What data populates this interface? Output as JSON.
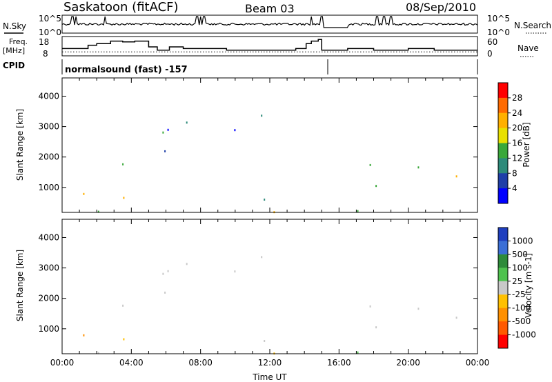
{
  "header": {
    "title": "Saskatoon (fitACF)",
    "beam": "Beam 03",
    "date": "08/Sep/2010"
  },
  "labels": {
    "nsky": "N.Sky",
    "nsearch": "N.Search",
    "freq_line1": "Freq.",
    "freq_line2": "[MHz]",
    "nave": "Nave",
    "cpid": "CPID",
    "cpid_value": "normalsound (fast) -157"
  },
  "chart_data": [
    {
      "type": "line",
      "name": "noise",
      "left_ticks": [
        "10^5",
        "10^0"
      ],
      "right_ticks": [
        "10^5",
        "10^0"
      ],
      "x_range_hours": [
        0,
        24
      ],
      "note_shape": "mostly flat near mid-level with spikes near 00:30-01:00, 02:30, 07:45-08:15, 14:30, 15:00, 18:00-19:00"
    },
    {
      "type": "line",
      "name": "frequency-nave",
      "left_ticks": [
        "18",
        "8"
      ],
      "right_ticks": [
        "60",
        "0"
      ],
      "ylim_left": [
        8,
        18
      ],
      "ylim_right": [
        0,
        60
      ],
      "freq_steps": [
        {
          "t": 0.0,
          "f": 12
        },
        {
          "t": 1.5,
          "f": 14
        },
        {
          "t": 2.0,
          "f": 15
        },
        {
          "t": 2.8,
          "f": 16.5
        },
        {
          "t": 3.5,
          "f": 16
        },
        {
          "t": 4.2,
          "f": 16.5
        },
        {
          "t": 5.0,
          "f": 13
        },
        {
          "t": 5.5,
          "f": 11
        },
        {
          "t": 6.2,
          "f": 13
        },
        {
          "t": 7.0,
          "f": 12
        },
        {
          "t": 9.5,
          "f": 11
        },
        {
          "t": 12.0,
          "f": 11
        },
        {
          "t": 13.5,
          "f": 12
        },
        {
          "t": 14.1,
          "f": 15
        },
        {
          "t": 14.4,
          "f": 16.5
        },
        {
          "t": 14.8,
          "f": 17.5
        },
        {
          "t": 15.0,
          "f": 11
        },
        {
          "t": 16.5,
          "f": 12
        },
        {
          "t": 18.0,
          "f": 11
        },
        {
          "t": 20.0,
          "f": 12
        },
        {
          "t": 21.5,
          "f": 11
        },
        {
          "t": 22.5,
          "f": 11
        },
        {
          "t": 24.0,
          "f": 11
        }
      ],
      "nave_dotted_value": 12
    },
    {
      "type": "heatmap",
      "name": "power",
      "ylabel": "Slant Range [km]",
      "yticks": [
        "4000",
        "3000",
        "2000",
        "1000"
      ],
      "ylim": [
        180,
        4600
      ],
      "x_range_hours": [
        0,
        24
      ],
      "colorbar_label": "Power [dB]",
      "colorbar_ticks": [
        "28",
        "24",
        "20",
        "16",
        "12",
        "8",
        "4"
      ],
      "colorbar_colors": [
        "#ff0000",
        "#ff6a00",
        "#ffb000",
        "#e8e000",
        "#3aa83a",
        "#2d8a7a",
        "#1f3fa8",
        "#0000ff"
      ]
    },
    {
      "type": "heatmap",
      "name": "velocity",
      "ylabel": "Slant Range [km]",
      "yticks": [
        "4000",
        "3000",
        "2000",
        "1000"
      ],
      "ylim": [
        180,
        4600
      ],
      "xlabel": "Time UT",
      "xticks": [
        "00:00",
        "04:00",
        "08:00",
        "12:00",
        "16:00",
        "20:00",
        "00:00"
      ],
      "x_range_hours": [
        0,
        24
      ],
      "colorbar_label": "Velocity [m s-1]",
      "colorbar_ticks": [
        "1000",
        "500",
        "100",
        "25",
        "-25",
        "-100",
        "-500",
        "-1000"
      ],
      "colorbar_colors": [
        "#1f3fbf",
        "#3b6fd6",
        "#2e8b3a",
        "#4fc24f",
        "#c8c8c8",
        "#ffc000",
        "#ff9000",
        "#ff5a00",
        "#ff0000"
      ]
    }
  ]
}
